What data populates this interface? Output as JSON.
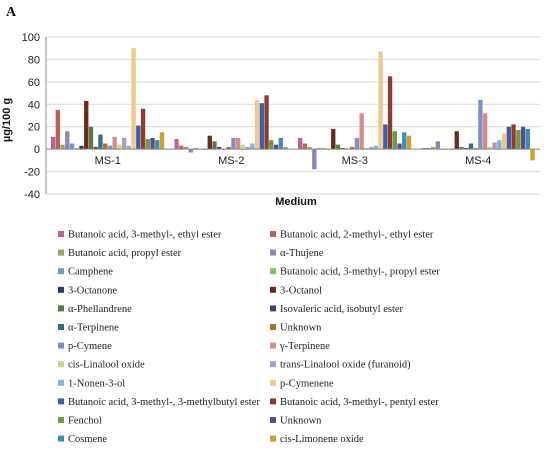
{
  "chart_data": {
    "type": "bar",
    "panel_label": "A",
    "xlabel": "Medium",
    "ylabel": "µg/100 g",
    "ylim": [
      -40,
      100
    ],
    "yticks": [
      -40,
      -20,
      0,
      20,
      40,
      60,
      80,
      100
    ],
    "grid": true,
    "legend_position": "bottom",
    "categories": [
      "MS-1",
      "MS-2",
      "MS-3",
      "MS-4"
    ],
    "series": [
      {
        "name": "Butanoic acid, 3-methyl-, ethyl ester",
        "color": "#c0609a",
        "values": [
          11,
          9,
          10,
          1
        ]
      },
      {
        "name": "Butanoic acid, 2-methyl-, ethyl ester",
        "color": "#b5655a",
        "values": [
          35,
          3,
          5,
          1
        ]
      },
      {
        "name": "Butanoic acid, propyl ester",
        "color": "#9aa356",
        "values": [
          4,
          2,
          2,
          2
        ]
      },
      {
        "name": "α-Thujene",
        "color": "#8f86b8",
        "values": [
          16,
          -3,
          -18,
          7
        ]
      },
      {
        "name": "Camphene",
        "color": "#6a9bc8",
        "values": [
          5,
          1,
          1,
          0
        ]
      },
      {
        "name": "Butanoic acid, 3-methyl-, propyl ester",
        "color": "#7ec25d",
        "values": [
          1,
          0,
          1,
          0
        ]
      },
      {
        "name": "3-Octanone",
        "color": "#2e3a6e",
        "values": [
          3,
          0,
          0,
          0
        ]
      },
      {
        "name": "3-Octanol",
        "color": "#6b2a1f",
        "values": [
          43,
          12,
          18,
          16
        ]
      },
      {
        "name": "α-Phellandrene",
        "color": "#5d7a3b",
        "values": [
          20,
          7,
          4,
          2
        ]
      },
      {
        "name": "Isovaleric acid, isobutyl ester",
        "color": "#4a3f6b",
        "values": [
          2,
          2,
          1,
          1
        ]
      },
      {
        "name": "α-Terpinene",
        "color": "#2f6f86",
        "values": [
          13,
          0,
          0,
          5
        ]
      },
      {
        "name": "Unknown",
        "color": "#b0702a",
        "values": [
          5,
          2,
          2,
          1
        ]
      },
      {
        "name": "p-Cymene",
        "color": "#7f8fc7",
        "values": [
          3,
          10,
          10,
          44
        ]
      },
      {
        "name": "γ-Terpinene",
        "color": "#d58d8a",
        "values": [
          11,
          10,
          32,
          32
        ]
      },
      {
        "name": "cis-Linalool oxide",
        "color": "#c9d68c",
        "values": [
          4,
          4,
          1,
          2
        ]
      },
      {
        "name": "trans-Linalool oxide (furanoid)",
        "color": "#a99cc8",
        "values": [
          10,
          2,
          2,
          6
        ]
      },
      {
        "name": "1-Nonen-3-ol",
        "color": "#7fb7d9",
        "values": [
          3,
          5,
          3,
          8
        ]
      },
      {
        "name": "p-Cymenene",
        "color": "#f0c98a",
        "values": [
          90,
          44,
          87,
          14
        ]
      },
      {
        "name": "Butanoic acid, 3-methyl-, 3-methylbutyl ester",
        "color": "#3b5ea8",
        "values": [
          21,
          41,
          22,
          20
        ]
      },
      {
        "name": "Butanoic acid, 3-methyl-, pentyl ester",
        "color": "#8e3a30",
        "values": [
          36,
          48,
          65,
          22
        ]
      },
      {
        "name": "Fenchol",
        "color": "#6f9a3c",
        "values": [
          9,
          8,
          16,
          17
        ]
      },
      {
        "name": "Unknown",
        "color": "#5e4b8b",
        "values": [
          10,
          4,
          5,
          20
        ]
      },
      {
        "name": "Cosmene",
        "color": "#3a8fb0",
        "values": [
          8,
          10,
          15,
          18
        ]
      },
      {
        "name": "cis-Limonene oxide",
        "color": "#c9a227",
        "values": [
          15,
          2,
          12,
          -10
        ]
      }
    ]
  }
}
